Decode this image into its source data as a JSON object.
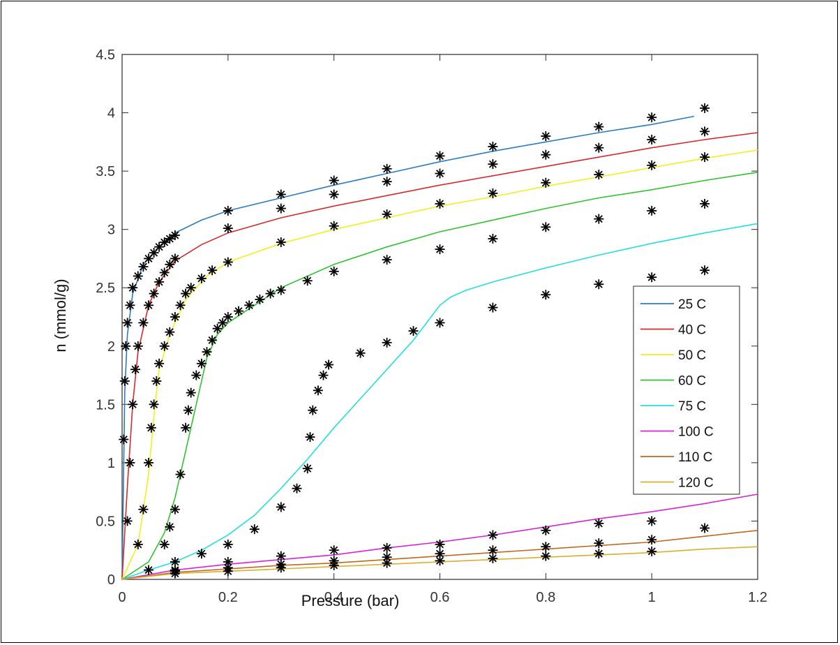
{
  "chart_data": {
    "type": "scatter",
    "xlabel": "Pressure (bar)",
    "ylabel": "n (mmol/g)",
    "xlim": [
      0,
      1.2
    ],
    "ylim": [
      0,
      4.5
    ],
    "xticks": [
      "0",
      "0.2",
      "0.4",
      "0.6",
      "0.8",
      "1",
      "1.2"
    ],
    "yticks": [
      "0",
      "0.5",
      "1",
      "1.5",
      "2",
      "2.5",
      "3",
      "3.5",
      "4",
      "4.5"
    ],
    "grid": false,
    "legend_position": "right",
    "marker": "asterisk",
    "series": [
      {
        "name": "25 C",
        "color": "#2b7bbf",
        "fit": [
          [
            0,
            0
          ],
          [
            0.005,
            1.6
          ],
          [
            0.01,
            2.1
          ],
          [
            0.02,
            2.45
          ],
          [
            0.04,
            2.7
          ],
          [
            0.07,
            2.85
          ],
          [
            0.1,
            2.97
          ],
          [
            0.15,
            3.08
          ],
          [
            0.2,
            3.16
          ],
          [
            0.3,
            3.27
          ],
          [
            0.4,
            3.38
          ],
          [
            0.5,
            3.48
          ],
          [
            0.6,
            3.58
          ],
          [
            0.7,
            3.67
          ],
          [
            0.8,
            3.75
          ],
          [
            0.9,
            3.83
          ],
          [
            1.0,
            3.9
          ],
          [
            1.08,
            3.97
          ]
        ],
        "points": [
          [
            0.003,
            1.2
          ],
          [
            0.005,
            1.7
          ],
          [
            0.007,
            2.0
          ],
          [
            0.01,
            2.2
          ],
          [
            0.015,
            2.35
          ],
          [
            0.02,
            2.5
          ],
          [
            0.03,
            2.6
          ],
          [
            0.04,
            2.68
          ],
          [
            0.05,
            2.75
          ],
          [
            0.06,
            2.8
          ],
          [
            0.07,
            2.85
          ],
          [
            0.08,
            2.89
          ],
          [
            0.09,
            2.92
          ],
          [
            0.1,
            2.95
          ],
          [
            0.2,
            3.16
          ],
          [
            0.3,
            3.3
          ],
          [
            0.4,
            3.42
          ],
          [
            0.5,
            3.52
          ],
          [
            0.6,
            3.63
          ],
          [
            0.7,
            3.71
          ],
          [
            0.8,
            3.8
          ],
          [
            0.9,
            3.88
          ],
          [
            1.0,
            3.96
          ],
          [
            1.1,
            4.04
          ]
        ]
      },
      {
        "name": "40 C",
        "color": "#d62a2a",
        "fit": [
          [
            0,
            0
          ],
          [
            0.01,
            0.8
          ],
          [
            0.02,
            1.5
          ],
          [
            0.03,
            1.95
          ],
          [
            0.05,
            2.35
          ],
          [
            0.07,
            2.55
          ],
          [
            0.1,
            2.73
          ],
          [
            0.15,
            2.87
          ],
          [
            0.2,
            2.97
          ],
          [
            0.3,
            3.1
          ],
          [
            0.4,
            3.2
          ],
          [
            0.5,
            3.29
          ],
          [
            0.6,
            3.38
          ],
          [
            0.7,
            3.46
          ],
          [
            0.8,
            3.54
          ],
          [
            0.9,
            3.62
          ],
          [
            1.0,
            3.7
          ],
          [
            1.1,
            3.77
          ],
          [
            1.2,
            3.83
          ]
        ],
        "points": [
          [
            0.01,
            0.5
          ],
          [
            0.015,
            1.0
          ],
          [
            0.02,
            1.5
          ],
          [
            0.025,
            1.8
          ],
          [
            0.03,
            2.0
          ],
          [
            0.04,
            2.2
          ],
          [
            0.05,
            2.35
          ],
          [
            0.06,
            2.45
          ],
          [
            0.07,
            2.55
          ],
          [
            0.08,
            2.63
          ],
          [
            0.09,
            2.7
          ],
          [
            0.1,
            2.75
          ],
          [
            0.2,
            3.01
          ],
          [
            0.3,
            3.18
          ],
          [
            0.4,
            3.3
          ],
          [
            0.5,
            3.41
          ],
          [
            0.6,
            3.48
          ],
          [
            0.7,
            3.56
          ],
          [
            0.8,
            3.64
          ],
          [
            0.9,
            3.7
          ],
          [
            1.0,
            3.77
          ],
          [
            1.1,
            3.84
          ]
        ]
      },
      {
        "name": "50 C",
        "color": "#f2ef1e",
        "fit": [
          [
            0,
            0
          ],
          [
            0.03,
            0.3
          ],
          [
            0.05,
            0.9
          ],
          [
            0.06,
            1.4
          ],
          [
            0.07,
            1.8
          ],
          [
            0.09,
            2.1
          ],
          [
            0.12,
            2.4
          ],
          [
            0.16,
            2.6
          ],
          [
            0.2,
            2.72
          ],
          [
            0.3,
            2.88
          ],
          [
            0.4,
            3.0
          ],
          [
            0.5,
            3.1
          ],
          [
            0.6,
            3.2
          ],
          [
            0.7,
            3.28
          ],
          [
            0.8,
            3.37
          ],
          [
            0.9,
            3.45
          ],
          [
            1.0,
            3.53
          ],
          [
            1.1,
            3.61
          ],
          [
            1.2,
            3.68
          ]
        ],
        "points": [
          [
            0.03,
            0.3
          ],
          [
            0.04,
            0.6
          ],
          [
            0.05,
            1.0
          ],
          [
            0.055,
            1.3
          ],
          [
            0.06,
            1.5
          ],
          [
            0.065,
            1.7
          ],
          [
            0.07,
            1.85
          ],
          [
            0.08,
            2.0
          ],
          [
            0.09,
            2.12
          ],
          [
            0.1,
            2.25
          ],
          [
            0.11,
            2.35
          ],
          [
            0.12,
            2.45
          ],
          [
            0.13,
            2.5
          ],
          [
            0.15,
            2.58
          ],
          [
            0.17,
            2.65
          ],
          [
            0.2,
            2.72
          ],
          [
            0.3,
            2.89
          ],
          [
            0.4,
            3.03
          ],
          [
            0.5,
            3.13
          ],
          [
            0.6,
            3.22
          ],
          [
            0.7,
            3.31
          ],
          [
            0.8,
            3.4
          ],
          [
            0.9,
            3.47
          ],
          [
            1.0,
            3.55
          ],
          [
            1.1,
            3.62
          ]
        ]
      },
      {
        "name": "60 C",
        "color": "#2fc42f",
        "fit": [
          [
            0,
            0
          ],
          [
            0.05,
            0.15
          ],
          [
            0.08,
            0.4
          ],
          [
            0.1,
            0.7
          ],
          [
            0.12,
            1.1
          ],
          [
            0.14,
            1.5
          ],
          [
            0.16,
            1.9
          ],
          [
            0.18,
            2.1
          ],
          [
            0.2,
            2.2
          ],
          [
            0.25,
            2.35
          ],
          [
            0.3,
            2.5
          ],
          [
            0.4,
            2.7
          ],
          [
            0.5,
            2.85
          ],
          [
            0.6,
            2.98
          ],
          [
            0.7,
            3.08
          ],
          [
            0.8,
            3.18
          ],
          [
            0.9,
            3.27
          ],
          [
            1.0,
            3.34
          ],
          [
            1.1,
            3.42
          ],
          [
            1.2,
            3.49
          ]
        ],
        "points": [
          [
            0.08,
            0.3
          ],
          [
            0.09,
            0.45
          ],
          [
            0.1,
            0.6
          ],
          [
            0.11,
            0.9
          ],
          [
            0.12,
            1.3
          ],
          [
            0.125,
            1.45
          ],
          [
            0.13,
            1.6
          ],
          [
            0.14,
            1.75
          ],
          [
            0.15,
            1.85
          ],
          [
            0.16,
            1.95
          ],
          [
            0.17,
            2.05
          ],
          [
            0.18,
            2.15
          ],
          [
            0.19,
            2.2
          ],
          [
            0.2,
            2.25
          ],
          [
            0.22,
            2.3
          ],
          [
            0.24,
            2.35
          ],
          [
            0.26,
            2.4
          ],
          [
            0.28,
            2.45
          ],
          [
            0.3,
            2.48
          ],
          [
            0.35,
            2.56
          ],
          [
            0.4,
            2.64
          ],
          [
            0.5,
            2.74
          ],
          [
            0.6,
            2.83
          ],
          [
            0.7,
            2.92
          ],
          [
            0.8,
            3.02
          ],
          [
            0.9,
            3.09
          ],
          [
            1.0,
            3.16
          ],
          [
            1.1,
            3.22
          ]
        ]
      },
      {
        "name": "75 C",
        "color": "#22dede",
        "fit": [
          [
            0,
            0
          ],
          [
            0.05,
            0.08
          ],
          [
            0.1,
            0.15
          ],
          [
            0.15,
            0.25
          ],
          [
            0.2,
            0.38
          ],
          [
            0.25,
            0.55
          ],
          [
            0.3,
            0.78
          ],
          [
            0.35,
            1.03
          ],
          [
            0.4,
            1.3
          ],
          [
            0.45,
            1.55
          ],
          [
            0.5,
            1.8
          ],
          [
            0.55,
            2.05
          ],
          [
            0.6,
            2.35
          ],
          [
            0.62,
            2.42
          ],
          [
            0.65,
            2.48
          ],
          [
            0.7,
            2.55
          ],
          [
            0.8,
            2.67
          ],
          [
            0.9,
            2.78
          ],
          [
            1.0,
            2.88
          ],
          [
            1.1,
            2.97
          ],
          [
            1.2,
            3.05
          ]
        ],
        "points": [
          [
            0.05,
            0.08
          ],
          [
            0.1,
            0.15
          ],
          [
            0.15,
            0.22
          ],
          [
            0.2,
            0.3
          ],
          [
            0.25,
            0.43
          ],
          [
            0.3,
            0.62
          ],
          [
            0.33,
            0.78
          ],
          [
            0.35,
            0.95
          ],
          [
            0.355,
            1.22
          ],
          [
            0.36,
            1.45
          ],
          [
            0.37,
            1.62
          ],
          [
            0.38,
            1.75
          ],
          [
            0.39,
            1.84
          ],
          [
            0.45,
            1.94
          ],
          [
            0.5,
            2.03
          ],
          [
            0.55,
            2.13
          ],
          [
            0.6,
            2.2
          ],
          [
            0.7,
            2.33
          ],
          [
            0.8,
            2.44
          ],
          [
            0.9,
            2.53
          ],
          [
            1.0,
            2.59
          ],
          [
            1.1,
            2.65
          ]
        ]
      },
      {
        "name": "100 C",
        "color": "#d623d6",
        "fit": [
          [
            0,
            0
          ],
          [
            0.1,
            0.08
          ],
          [
            0.2,
            0.13
          ],
          [
            0.3,
            0.17
          ],
          [
            0.4,
            0.21
          ],
          [
            0.5,
            0.27
          ],
          [
            0.6,
            0.32
          ],
          [
            0.7,
            0.38
          ],
          [
            0.8,
            0.45
          ],
          [
            0.9,
            0.52
          ],
          [
            1.0,
            0.58
          ],
          [
            1.1,
            0.65
          ],
          [
            1.2,
            0.73
          ]
        ],
        "points": [
          [
            0.1,
            0.08
          ],
          [
            0.2,
            0.15
          ],
          [
            0.3,
            0.2
          ],
          [
            0.4,
            0.25
          ],
          [
            0.5,
            0.27
          ],
          [
            0.6,
            0.3
          ],
          [
            0.7,
            0.38
          ],
          [
            0.8,
            0.42
          ],
          [
            0.9,
            0.48
          ],
          [
            1.0,
            0.5
          ]
        ]
      },
      {
        "name": "110 C",
        "color": "#c0661d",
        "fit": [
          [
            0,
            0
          ],
          [
            0.1,
            0.06
          ],
          [
            0.2,
            0.09
          ],
          [
            0.3,
            0.12
          ],
          [
            0.4,
            0.14
          ],
          [
            0.5,
            0.17
          ],
          [
            0.6,
            0.2
          ],
          [
            0.7,
            0.23
          ],
          [
            0.8,
            0.26
          ],
          [
            0.9,
            0.29
          ],
          [
            1.0,
            0.32
          ],
          [
            1.1,
            0.37
          ],
          [
            1.2,
            0.42
          ]
        ],
        "points": [
          [
            0.1,
            0.07
          ],
          [
            0.2,
            0.1
          ],
          [
            0.3,
            0.13
          ],
          [
            0.4,
            0.16
          ],
          [
            0.5,
            0.19
          ],
          [
            0.6,
            0.22
          ],
          [
            0.7,
            0.25
          ],
          [
            0.8,
            0.28
          ],
          [
            0.9,
            0.31
          ],
          [
            1.0,
            0.34
          ],
          [
            1.1,
            0.44
          ]
        ]
      },
      {
        "name": "120 C",
        "color": "#d9b02b",
        "fit": [
          [
            0,
            0
          ],
          [
            0.1,
            0.05
          ],
          [
            0.2,
            0.07
          ],
          [
            0.3,
            0.09
          ],
          [
            0.4,
            0.11
          ],
          [
            0.5,
            0.13
          ],
          [
            0.6,
            0.15
          ],
          [
            0.7,
            0.17
          ],
          [
            0.8,
            0.19
          ],
          [
            0.9,
            0.21
          ],
          [
            1.0,
            0.23
          ],
          [
            1.1,
            0.26
          ],
          [
            1.2,
            0.28
          ]
        ],
        "points": [
          [
            0.1,
            0.05
          ],
          [
            0.2,
            0.07
          ],
          [
            0.3,
            0.1
          ],
          [
            0.4,
            0.12
          ],
          [
            0.5,
            0.14
          ],
          [
            0.6,
            0.16
          ],
          [
            0.7,
            0.18
          ],
          [
            0.8,
            0.2
          ],
          [
            0.9,
            0.22
          ],
          [
            1.0,
            0.24
          ]
        ]
      }
    ]
  }
}
